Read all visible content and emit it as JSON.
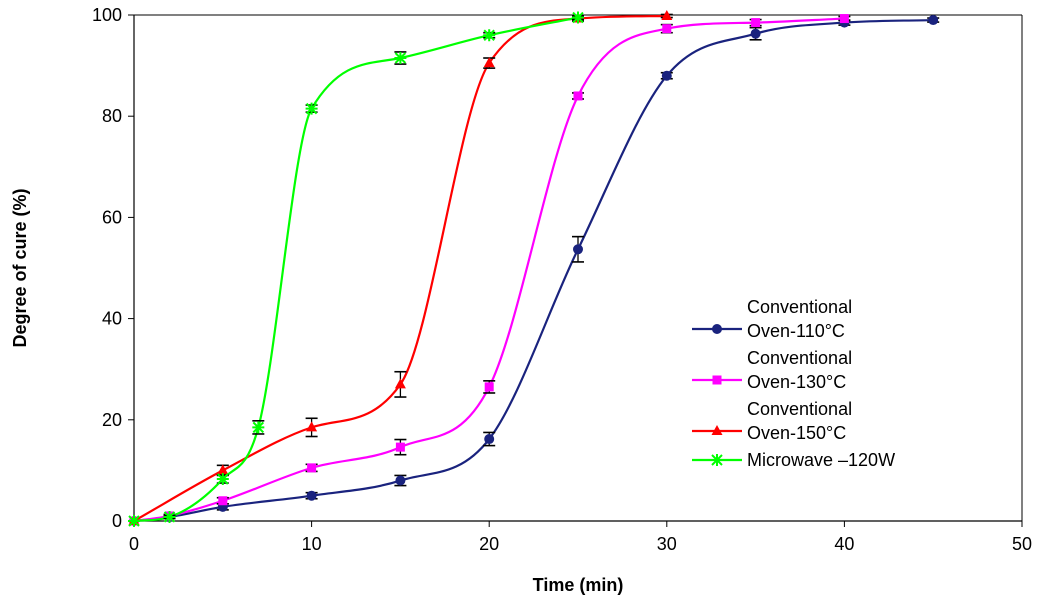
{
  "chart_data": {
    "type": "line",
    "title": "",
    "xlabel": "Time (min)",
    "ylabel": "Degree of cure (%)",
    "xlim": [
      0,
      50
    ],
    "ylim": [
      0,
      100
    ],
    "xticks": [
      "0",
      "10",
      "20",
      "30",
      "40",
      "50"
    ],
    "yticks": [
      "0",
      "20",
      "40",
      "60",
      "80",
      "100"
    ],
    "grid": false,
    "legend_position": "right",
    "series": [
      {
        "name_lines": [
          "Conventional",
          "Oven-110°C"
        ],
        "color": "#1a237e",
        "marker": "circle",
        "x": [
          0,
          2,
          5,
          10,
          15,
          20,
          25,
          30,
          35,
          40,
          45
        ],
        "y": [
          0,
          0.8,
          2.8,
          5.0,
          8.0,
          16.2,
          53.7,
          88.0,
          96.3,
          98.5,
          99.0
        ],
        "err": [
          0,
          0.3,
          0.6,
          0.6,
          1.0,
          1.3,
          2.5,
          0.6,
          1.2,
          0.5,
          0.4
        ]
      },
      {
        "name_lines": [
          "Conventional",
          "Oven-130°C"
        ],
        "color": "#ff00ff",
        "marker": "square",
        "x": [
          0,
          2,
          5,
          10,
          15,
          20,
          25,
          30,
          35,
          40
        ],
        "y": [
          0,
          1.0,
          4.0,
          10.5,
          14.6,
          26.5,
          84.0,
          97.3,
          98.5,
          99.3
        ],
        "err": [
          0,
          0.3,
          0.6,
          0.7,
          1.5,
          1.2,
          0.6,
          0.8,
          0.6,
          0.4
        ]
      },
      {
        "name_lines": [
          "Conventional",
          "Oven-150°C"
        ],
        "color": "#ff0000",
        "marker": "triangle",
        "x": [
          0,
          5,
          10,
          15,
          20,
          25,
          30
        ],
        "y": [
          0,
          10.0,
          18.5,
          27.0,
          90.5,
          99.3,
          99.8
        ],
        "err": [
          0,
          1.0,
          1.8,
          2.5,
          1.0,
          0.5,
          0.3
        ]
      },
      {
        "name_lines": [
          "Microwave –120W"
        ],
        "color": "#00ff00",
        "marker": "star",
        "x": [
          0,
          2,
          5,
          7,
          10,
          15,
          20,
          25
        ],
        "y": [
          0,
          0.8,
          8.3,
          18.5,
          81.5,
          91.5,
          96.0,
          99.5
        ],
        "err": [
          0,
          0.3,
          0.8,
          1.3,
          0.7,
          1.2,
          0.5,
          0.4
        ]
      }
    ]
  }
}
